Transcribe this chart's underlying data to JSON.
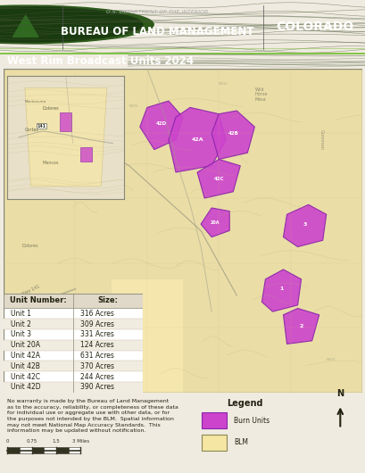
{
  "title_main": "BUREAU OF LAND MANAGEMENT",
  "title_sub": "U.S. DEPARTMENT OF THE INTERIOR",
  "title_state": "COLORADO",
  "map_title": "West Rim Broadcast Units 2024",
  "disclaimer": "No warranty is made by the Bureau of Land Management\nas to the accuracy, reliability, or completeness of these data\nfor individual use or aggregate use with other data, or for\nthe purposes not intended by the BLM.  Spatial information\nmay not meet National Map Accuracy Standards.  This\ninformation may be updated without notification.",
  "legend_title": "Legend",
  "legend_items": [
    {
      "label": "Burn Units",
      "color": "#CC44CC"
    },
    {
      "label": "BLM",
      "color": "#F5E6A3"
    }
  ],
  "table_headers": [
    "Unit Number:",
    "Size:"
  ],
  "table_rows": [
    [
      "Unit 1",
      "316 Acres"
    ],
    [
      "Unit 2",
      "309 Acres"
    ],
    [
      "Unit 3",
      "331 Acres"
    ],
    [
      "Unit 20A",
      "124 Acres"
    ],
    [
      "Unit 42A",
      "631 Acres"
    ],
    [
      "Unit 42B",
      "370 Acres"
    ],
    [
      "Unit 42C",
      "244 Acres"
    ],
    [
      "Unit 42D",
      "390 Acres"
    ]
  ],
  "header_bg": "#1a1a1a",
  "header_text": "#ffffff",
  "header_green_line": "#7dc242",
  "map_title_bg": "#1a1a1a",
  "map_title_text": "#ffffff",
  "map_bg": "#d4c99a",
  "inset_bg": "#e8e0c8",
  "burn_color": "#cc44cc",
  "blm_color": "#f5e6a3",
  "table_bg": "#ffffff",
  "table_border": "#888888",
  "scale_bar_color": "#333333",
  "north_arrow_color": "#333333"
}
